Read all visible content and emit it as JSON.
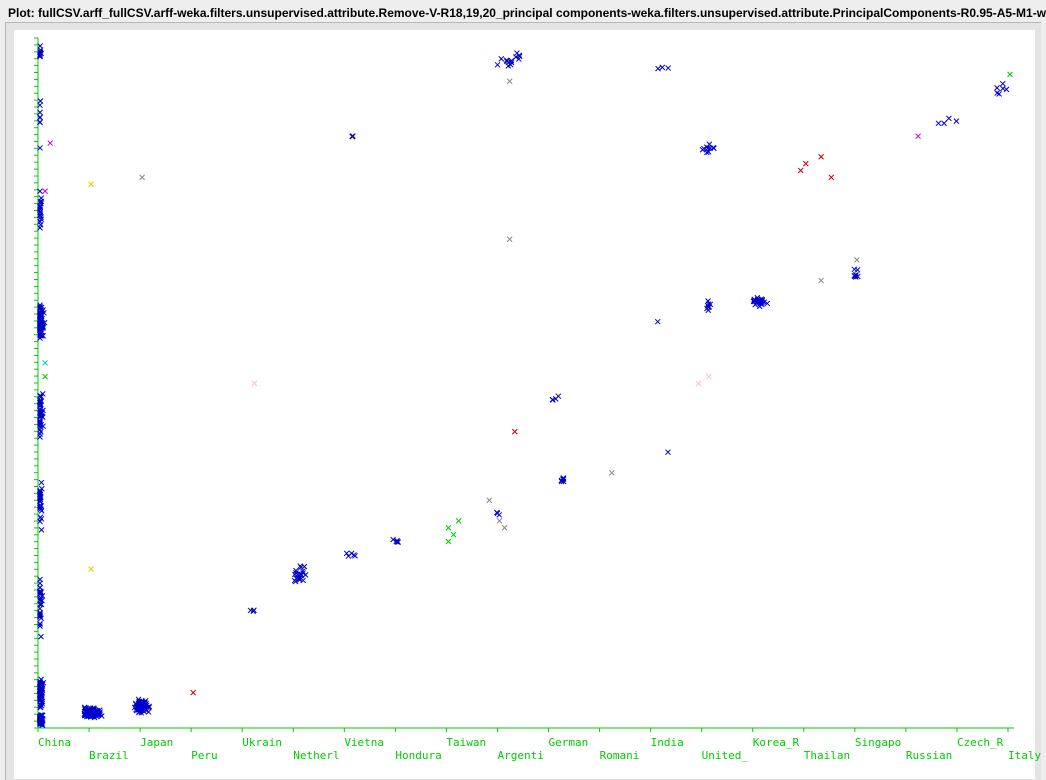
{
  "window": {
    "title": "Plot: fullCSV.arff_fullCSV.arff-weka.filters.unsupervised.attribute.Remove-V-R18,19,20_principal components-weka.filters.unsupervised.attribute.PrincipalComponents-R0.95-A5-M1-w"
  },
  "colors": {
    "axis": "#00cc00",
    "background": "#ffffff",
    "main_series": "#0000cc"
  },
  "chart_data": {
    "type": "scatter",
    "title": "",
    "xlabel": "",
    "ylabel": "",
    "x_axis_type": "nominal",
    "categories": [
      "China",
      "Brazil",
      "Japan",
      "Peru",
      "Ukrain",
      "Netherl",
      "Vietna",
      "Hondura",
      "Taiwan",
      "Argenti",
      "German",
      "Romani",
      "India",
      "United_",
      "Korea_R",
      "Thailan",
      "Singapo",
      "Russian",
      "Czech_R",
      "Italy"
    ],
    "ylim": [
      0,
      100
    ],
    "grid": false,
    "legend": "none",
    "series": [
      {
        "color": "#0000cc",
        "clusters": [
          {
            "x": 0.0,
            "y": 98,
            "n": 10,
            "spread_x": 0.05,
            "spread_y": 2
          },
          {
            "x": 0.0,
            "y": 88,
            "n": 8,
            "spread_x": 0.05,
            "spread_y": 6
          },
          {
            "x": 0.0,
            "y": 75,
            "n": 20,
            "spread_x": 0.08,
            "spread_y": 4
          },
          {
            "x": 0.0,
            "y": 59,
            "n": 90,
            "spread_x": 0.1,
            "spread_y": 3
          },
          {
            "x": 0.0,
            "y": 46,
            "n": 45,
            "spread_x": 0.08,
            "spread_y": 4
          },
          {
            "x": 0.0,
            "y": 33,
            "n": 30,
            "spread_x": 0.06,
            "spread_y": 5
          },
          {
            "x": 0.0,
            "y": 18,
            "n": 30,
            "spread_x": 0.06,
            "spread_y": 6
          },
          {
            "x": 0.0,
            "y": 5,
            "n": 70,
            "spread_x": 0.08,
            "spread_y": 3
          },
          {
            "x": 0.0,
            "y": 1,
            "n": 60,
            "spread_x": 0.1,
            "spread_y": 1
          },
          {
            "x": 1.0,
            "y": 2,
            "n": 110,
            "spread_x": 0.25,
            "spread_y": 1
          },
          {
            "x": 2.0,
            "y": 3,
            "n": 55,
            "spread_x": 0.22,
            "spread_y": 1.5
          },
          {
            "x": 4.2,
            "y": 17,
            "n": 3,
            "spread_x": 0.15,
            "spread_y": 0.4
          },
          {
            "x": 5.1,
            "y": 22,
            "n": 20,
            "spread_x": 0.25,
            "spread_y": 2
          },
          {
            "x": 6.1,
            "y": 25,
            "n": 5,
            "spread_x": 0.15,
            "spread_y": 0.6
          },
          {
            "x": 7.0,
            "y": 27,
            "n": 5,
            "spread_x": 0.1,
            "spread_y": 0.5
          },
          {
            "x": 9.0,
            "y": 31,
            "n": 3,
            "spread_x": 0.1,
            "spread_y": 0.7
          },
          {
            "x": 10.2,
            "y": 36,
            "n": 6,
            "spread_x": 0.12,
            "spread_y": 0.5
          },
          {
            "x": 10.1,
            "y": 48,
            "n": 4,
            "spread_x": 0.1,
            "spread_y": 1.2
          },
          {
            "x": 9.2,
            "y": 97,
            "n": 14,
            "spread_x": 0.3,
            "spread_y": 1.5
          },
          {
            "x": 6.1,
            "y": 86,
            "n": 3,
            "spread_x": 0.08,
            "spread_y": 0.3
          },
          {
            "x": 12.2,
            "y": 96,
            "n": 3,
            "spread_x": 0.2,
            "spread_y": 0.5
          },
          {
            "x": 13.1,
            "y": 84,
            "n": 10,
            "spread_x": 0.3,
            "spread_y": 1.2
          },
          {
            "x": 13.1,
            "y": 61,
            "n": 8,
            "spread_x": 0.1,
            "spread_y": 1.2
          },
          {
            "x": 14.1,
            "y": 62,
            "n": 28,
            "spread_x": 0.18,
            "spread_y": 1
          },
          {
            "x": 16.0,
            "y": 66,
            "n": 8,
            "spread_x": 0.08,
            "spread_y": 1.2
          },
          {
            "x": 12.1,
            "y": 59,
            "n": 1,
            "spread_x": 0,
            "spread_y": 0
          },
          {
            "x": 12.3,
            "y": 40,
            "n": 1,
            "spread_x": 0,
            "spread_y": 0
          },
          {
            "x": 17.8,
            "y": 88,
            "n": 4,
            "spread_x": 0.3,
            "spread_y": 0.8
          },
          {
            "x": 18.8,
            "y": 93,
            "n": 6,
            "spread_x": 0.2,
            "spread_y": 1
          }
        ]
      },
      {
        "color": "#888888",
        "points": [
          [
            2.0,
            80
          ],
          [
            9.2,
            94
          ],
          [
            9.2,
            71
          ],
          [
            8.8,
            33
          ],
          [
            9.1,
            29
          ],
          [
            11.2,
            37
          ],
          [
            15.3,
            65
          ],
          [
            16.0,
            68
          ],
          [
            9.0,
            30
          ]
        ]
      },
      {
        "color": "#cc0000",
        "points": [
          [
            3.0,
            5
          ],
          [
            9.3,
            43
          ],
          [
            15.0,
            82
          ],
          [
            15.3,
            83
          ],
          [
            14.9,
            81
          ],
          [
            15.5,
            80
          ]
        ]
      },
      {
        "color": "#00cc00",
        "points": [
          [
            8.0,
            29
          ],
          [
            8.1,
            28
          ],
          [
            8.2,
            30
          ],
          [
            8.0,
            27
          ],
          [
            19.0,
            95
          ],
          [
            0.1,
            51
          ]
        ]
      },
      {
        "color": "#cc00cc",
        "points": [
          [
            0.2,
            85
          ],
          [
            17.2,
            86
          ],
          [
            0.1,
            78
          ]
        ]
      },
      {
        "color": "#ffc0cb",
        "points": [
          [
            4.2,
            50
          ],
          [
            12.9,
            50
          ],
          [
            13.1,
            51
          ]
        ]
      },
      {
        "color": "#ddcc00",
        "points": [
          [
            1.0,
            79
          ],
          [
            1.0,
            23
          ]
        ]
      },
      {
        "color": "#00cccc",
        "points": [
          [
            0.1,
            53
          ]
        ]
      }
    ]
  }
}
